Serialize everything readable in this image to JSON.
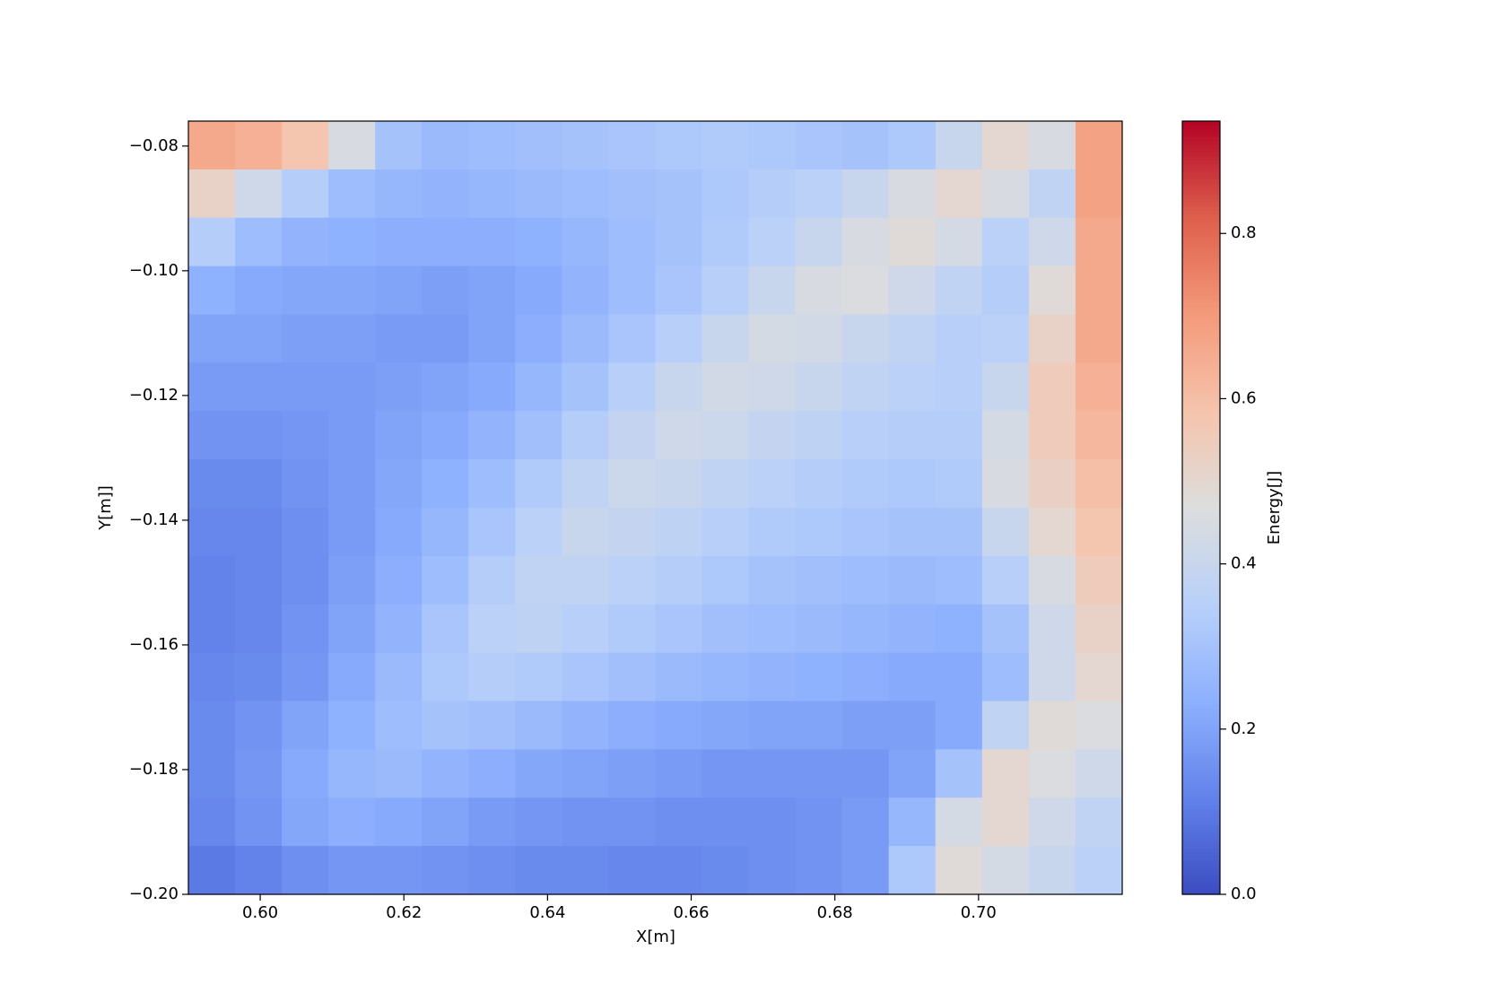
{
  "chart_data": {
    "type": "heatmap",
    "xlabel": "X[m]",
    "ylabel": "Y[m]]",
    "colorbar_label": "Energy[J]",
    "colormap": "coolwarm",
    "xlim": [
      0.59,
      0.72
    ],
    "ylim": [
      -0.2,
      -0.076
    ],
    "vlim": [
      0,
      0.936
    ],
    "xticks": [
      {
        "value": 0.6,
        "label": "0.60"
      },
      {
        "value": 0.62,
        "label": "0.62"
      },
      {
        "value": 0.64,
        "label": "0.64"
      },
      {
        "value": 0.66,
        "label": "0.66"
      },
      {
        "value": 0.68,
        "label": "0.68"
      },
      {
        "value": 0.7,
        "label": "0.70"
      }
    ],
    "yticks": [
      {
        "value": -0.08,
        "label": "−0.08"
      },
      {
        "value": -0.1,
        "label": "−0.10"
      },
      {
        "value": -0.12,
        "label": "−0.12"
      },
      {
        "value": -0.14,
        "label": "−0.14"
      },
      {
        "value": -0.16,
        "label": "−0.16"
      },
      {
        "value": -0.18,
        "label": "−0.18"
      },
      {
        "value": -0.2,
        "label": "−0.20"
      }
    ],
    "cticks": [
      {
        "value": 0,
        "label": "0.0"
      },
      0.2,
      0.4,
      0.6,
      0.8
    ],
    "z": [
      [
        0.66,
        0.64,
        0.58,
        0.45,
        0.3,
        0.27,
        0.28,
        0.29,
        0.3,
        0.31,
        0.32,
        0.33,
        0.32,
        0.31,
        0.3,
        0.32,
        0.4,
        0.5,
        0.45,
        0.68
      ],
      [
        0.52,
        0.42,
        0.34,
        0.28,
        0.26,
        0.25,
        0.26,
        0.27,
        0.28,
        0.29,
        0.3,
        0.32,
        0.34,
        0.36,
        0.4,
        0.45,
        0.5,
        0.45,
        0.38,
        0.68
      ],
      [
        0.34,
        0.28,
        0.25,
        0.24,
        0.23,
        0.23,
        0.23,
        0.24,
        0.26,
        0.28,
        0.3,
        0.33,
        0.36,
        0.4,
        0.45,
        0.48,
        0.44,
        0.36,
        0.42,
        0.66
      ],
      [
        0.24,
        0.22,
        0.21,
        0.21,
        0.2,
        0.19,
        0.2,
        0.22,
        0.25,
        0.28,
        0.31,
        0.35,
        0.4,
        0.45,
        0.46,
        0.42,
        0.38,
        0.34,
        0.48,
        0.66
      ],
      [
        0.2,
        0.2,
        0.19,
        0.19,
        0.18,
        0.18,
        0.2,
        0.23,
        0.27,
        0.31,
        0.35,
        0.4,
        0.44,
        0.43,
        0.4,
        0.38,
        0.35,
        0.36,
        0.52,
        0.66
      ],
      [
        0.18,
        0.18,
        0.18,
        0.18,
        0.19,
        0.2,
        0.22,
        0.26,
        0.3,
        0.35,
        0.4,
        0.43,
        0.42,
        0.4,
        0.38,
        0.36,
        0.35,
        0.4,
        0.55,
        0.64
      ],
      [
        0.16,
        0.16,
        0.17,
        0.18,
        0.2,
        0.22,
        0.25,
        0.29,
        0.34,
        0.39,
        0.42,
        0.41,
        0.39,
        0.37,
        0.35,
        0.34,
        0.34,
        0.44,
        0.55,
        0.62
      ],
      [
        0.14,
        0.14,
        0.16,
        0.18,
        0.21,
        0.24,
        0.28,
        0.33,
        0.38,
        0.41,
        0.4,
        0.38,
        0.36,
        0.34,
        0.33,
        0.32,
        0.33,
        0.45,
        0.53,
        0.6
      ],
      [
        0.13,
        0.13,
        0.15,
        0.18,
        0.22,
        0.26,
        0.31,
        0.36,
        0.4,
        0.39,
        0.37,
        0.35,
        0.33,
        0.32,
        0.31,
        0.3,
        0.3,
        0.4,
        0.5,
        0.58
      ],
      [
        0.12,
        0.13,
        0.15,
        0.19,
        0.23,
        0.28,
        0.34,
        0.38,
        0.38,
        0.36,
        0.34,
        0.32,
        0.3,
        0.29,
        0.28,
        0.27,
        0.28,
        0.35,
        0.45,
        0.55
      ],
      [
        0.12,
        0.13,
        0.16,
        0.2,
        0.25,
        0.31,
        0.36,
        0.37,
        0.35,
        0.33,
        0.31,
        0.29,
        0.28,
        0.27,
        0.26,
        0.25,
        0.24,
        0.3,
        0.42,
        0.52
      ],
      [
        0.13,
        0.14,
        0.17,
        0.22,
        0.27,
        0.32,
        0.34,
        0.33,
        0.31,
        0.29,
        0.27,
        0.26,
        0.25,
        0.24,
        0.23,
        0.22,
        0.22,
        0.28,
        0.42,
        0.5
      ],
      [
        0.14,
        0.16,
        0.2,
        0.24,
        0.28,
        0.3,
        0.29,
        0.27,
        0.25,
        0.23,
        0.22,
        0.21,
        0.2,
        0.2,
        0.19,
        0.19,
        0.22,
        0.38,
        0.48,
        0.46
      ],
      [
        0.14,
        0.17,
        0.22,
        0.26,
        0.27,
        0.25,
        0.23,
        0.21,
        0.2,
        0.19,
        0.18,
        0.17,
        0.17,
        0.17,
        0.17,
        0.2,
        0.3,
        0.5,
        0.46,
        0.42
      ],
      [
        0.13,
        0.16,
        0.21,
        0.23,
        0.22,
        0.2,
        0.18,
        0.17,
        0.16,
        0.16,
        0.15,
        0.15,
        0.15,
        0.16,
        0.18,
        0.26,
        0.44,
        0.5,
        0.42,
        0.38
      ],
      [
        0.1,
        0.12,
        0.15,
        0.17,
        0.17,
        0.16,
        0.15,
        0.14,
        0.14,
        0.13,
        0.13,
        0.14,
        0.15,
        0.16,
        0.18,
        0.32,
        0.48,
        0.44,
        0.4,
        0.36
      ]
    ]
  }
}
